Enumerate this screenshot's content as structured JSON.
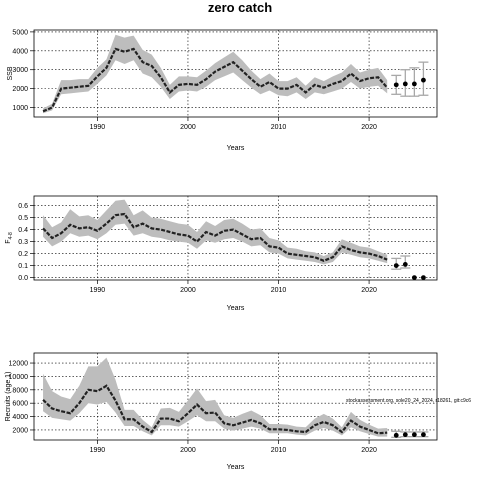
{
  "title": "zero catch",
  "note": "stockassessment.org, sole20_24_2024, r18261, git:c9c6",
  "colors": {
    "band": "#bdbdbd",
    "line": "#222222",
    "proj_ci": "#a8a8a8"
  },
  "chart_data": [
    {
      "type": "line",
      "xlabel": "Years",
      "ylabel": "SSB",
      "xlim": [
        1983,
        2027.5
      ],
      "ylim": [
        500,
        5100
      ],
      "xticks": [
        1990,
        2000,
        2010,
        2020
      ],
      "yticks": [
        1000,
        2000,
        3000,
        4000,
        5000
      ],
      "grid": true,
      "x": [
        1984,
        1985,
        1986,
        1987,
        1988,
        1989,
        1990,
        1991,
        1992,
        1993,
        1994,
        1995,
        1996,
        1997,
        1998,
        1999,
        2000,
        2001,
        2002,
        2003,
        2004,
        2005,
        2006,
        2007,
        2008,
        2009,
        2010,
        2011,
        2012,
        2013,
        2014,
        2015,
        2016,
        2017,
        2018,
        2019,
        2020,
        2021,
        2022
      ],
      "estimate": [
        800,
        1000,
        2000,
        2050,
        2100,
        2150,
        2650,
        3100,
        4100,
        3950,
        4100,
        3400,
        3200,
        2600,
        1800,
        2200,
        2250,
        2200,
        2500,
        2900,
        3150,
        3400,
        2950,
        2500,
        2100,
        2350,
        2000,
        2000,
        2200,
        1800,
        2200,
        2050,
        2250,
        2400,
        2800,
        2400,
        2550,
        2600,
        2050
      ],
      "lower": [
        700,
        850,
        1700,
        1750,
        1800,
        1850,
        2250,
        2700,
        3500,
        3300,
        3500,
        2800,
        2600,
        2100,
        1450,
        1850,
        1900,
        1850,
        2100,
        2450,
        2650,
        2850,
        2450,
        2050,
        1700,
        1900,
        1650,
        1600,
        1800,
        1450,
        1800,
        1700,
        1850,
        2000,
        2350,
        2000,
        2100,
        2150,
        1750
      ],
      "upper": [
        950,
        1200,
        2450,
        2450,
        2500,
        2500,
        3100,
        3550,
        4850,
        4700,
        4800,
        4050,
        3800,
        3100,
        2200,
        2650,
        2650,
        2600,
        2950,
        3350,
        3650,
        3950,
        3500,
        2950,
        2500,
        2800,
        2400,
        2400,
        2600,
        2150,
        2600,
        2400,
        2650,
        2850,
        3300,
        2850,
        3000,
        3100,
        2450
      ],
      "projection": {
        "x": [
          2023,
          2024,
          2025,
          2026
        ],
        "median": [
          2200,
          2250,
          2250,
          2450
        ],
        "lower": [
          1700,
          1600,
          1600,
          1650
        ],
        "upper": [
          2700,
          3000,
          3100,
          3400
        ]
      }
    },
    {
      "type": "line",
      "xlabel": "Years",
      "ylabel": "F",
      "ylabel_sub": "4-8",
      "xlim": [
        1983,
        2027.5
      ],
      "ylim": [
        -0.02,
        0.68
      ],
      "xticks": [
        1990,
        2000,
        2010,
        2020
      ],
      "yticks": [
        "0.0",
        "0.1",
        "0.2",
        "0.3",
        "0.4",
        "0.5",
        "0.6"
      ],
      "grid": true,
      "x": [
        1984,
        1985,
        1986,
        1987,
        1988,
        1989,
        1990,
        1991,
        1992,
        1993,
        1994,
        1995,
        1996,
        1997,
        1998,
        1999,
        2000,
        2001,
        2002,
        2003,
        2004,
        2005,
        2006,
        2007,
        2008,
        2009,
        2010,
        2011,
        2012,
        2013,
        2014,
        2015,
        2016,
        2017,
        2018,
        2019,
        2020,
        2021,
        2022
      ],
      "estimate": [
        0.41,
        0.33,
        0.37,
        0.44,
        0.41,
        0.42,
        0.39,
        0.45,
        0.52,
        0.53,
        0.42,
        0.45,
        0.41,
        0.4,
        0.38,
        0.36,
        0.35,
        0.3,
        0.38,
        0.35,
        0.39,
        0.4,
        0.36,
        0.32,
        0.33,
        0.26,
        0.25,
        0.2,
        0.19,
        0.18,
        0.17,
        0.14,
        0.17,
        0.26,
        0.23,
        0.21,
        0.2,
        0.18,
        0.15
      ],
      "lower": [
        0.34,
        0.26,
        0.3,
        0.37,
        0.34,
        0.35,
        0.32,
        0.37,
        0.44,
        0.45,
        0.35,
        0.37,
        0.34,
        0.33,
        0.31,
        0.3,
        0.29,
        0.24,
        0.31,
        0.29,
        0.32,
        0.33,
        0.3,
        0.26,
        0.27,
        0.21,
        0.2,
        0.16,
        0.15,
        0.14,
        0.13,
        0.11,
        0.13,
        0.21,
        0.19,
        0.17,
        0.16,
        0.14,
        0.12
      ],
      "upper": [
        0.52,
        0.42,
        0.46,
        0.57,
        0.51,
        0.52,
        0.48,
        0.56,
        0.64,
        0.65,
        0.52,
        0.56,
        0.5,
        0.49,
        0.47,
        0.45,
        0.44,
        0.38,
        0.47,
        0.43,
        0.48,
        0.49,
        0.45,
        0.4,
        0.41,
        0.33,
        0.31,
        0.25,
        0.24,
        0.22,
        0.21,
        0.18,
        0.21,
        0.32,
        0.29,
        0.26,
        0.25,
        0.22,
        0.19
      ],
      "projection": {
        "x": [
          2023,
          2024,
          2025,
          2026
        ],
        "median": [
          0.1,
          0.11,
          0.0,
          0.0
        ],
        "lower": [
          0.07,
          0.08,
          0.0,
          0.0
        ],
        "upper": [
          0.16,
          0.18,
          0.0,
          0.0
        ]
      }
    },
    {
      "type": "line",
      "xlabel": "Years",
      "ylabel": "Recruits (age 1)",
      "xlim": [
        1983,
        2027.5
      ],
      "ylim": [
        500,
        13500
      ],
      "xticks": [
        1990,
        2000,
        2010,
        2020
      ],
      "yticks": [
        2000,
        4000,
        6000,
        8000,
        10000,
        12000
      ],
      "grid": true,
      "x": [
        1984,
        1985,
        1986,
        1987,
        1988,
        1989,
        1990,
        1991,
        1992,
        1993,
        1994,
        1995,
        1996,
        1997,
        1998,
        1999,
        2000,
        2001,
        2002,
        2003,
        2004,
        2005,
        2006,
        2007,
        2008,
        2009,
        2010,
        2011,
        2012,
        2013,
        2014,
        2015,
        2016,
        2017,
        2018,
        2019,
        2020,
        2021,
        2022
      ],
      "estimate": [
        6500,
        5200,
        4800,
        4500,
        6000,
        8000,
        7800,
        8600,
        6400,
        3600,
        3600,
        2500,
        1700,
        3700,
        3700,
        3300,
        4500,
        5800,
        4500,
        4600,
        3000,
        2700,
        3100,
        3500,
        3000,
        2100,
        2100,
        2000,
        1800,
        1700,
        2700,
        3200,
        2700,
        1700,
        3400,
        2500,
        2000,
        1500,
        1600
      ],
      "lower": [
        4800,
        3800,
        3600,
        3400,
        4500,
        6000,
        5800,
        6200,
        4600,
        2600,
        2600,
        1800,
        1200,
        2700,
        2700,
        2500,
        3300,
        4200,
        3300,
        3300,
        2200,
        1900,
        2200,
        2500,
        2200,
        1500,
        1500,
        1500,
        1300,
        1200,
        1900,
        2300,
        1900,
        1200,
        2400,
        1800,
        1400,
        1000,
        1000
      ],
      "upper": [
        10400,
        7800,
        7000,
        6600,
        8600,
        11500,
        11500,
        12800,
        9500,
        5000,
        5000,
        3500,
        2400,
        5200,
        5300,
        4700,
        6400,
        8200,
        6300,
        6500,
        4200,
        3800,
        4400,
        4900,
        4200,
        2900,
        2900,
        2800,
        2500,
        2400,
        3700,
        4400,
        3700,
        2400,
        4700,
        3500,
        2800,
        2200,
        2300
      ],
      "projection": {
        "x": [
          2023,
          2024,
          2025,
          2026
        ],
        "median": [
          1200,
          1300,
          1300,
          1300
        ],
        "lower": [
          900,
          1000,
          1000,
          1000
        ],
        "upper": [
          1800,
          1700,
          1700,
          1700
        ]
      }
    }
  ]
}
